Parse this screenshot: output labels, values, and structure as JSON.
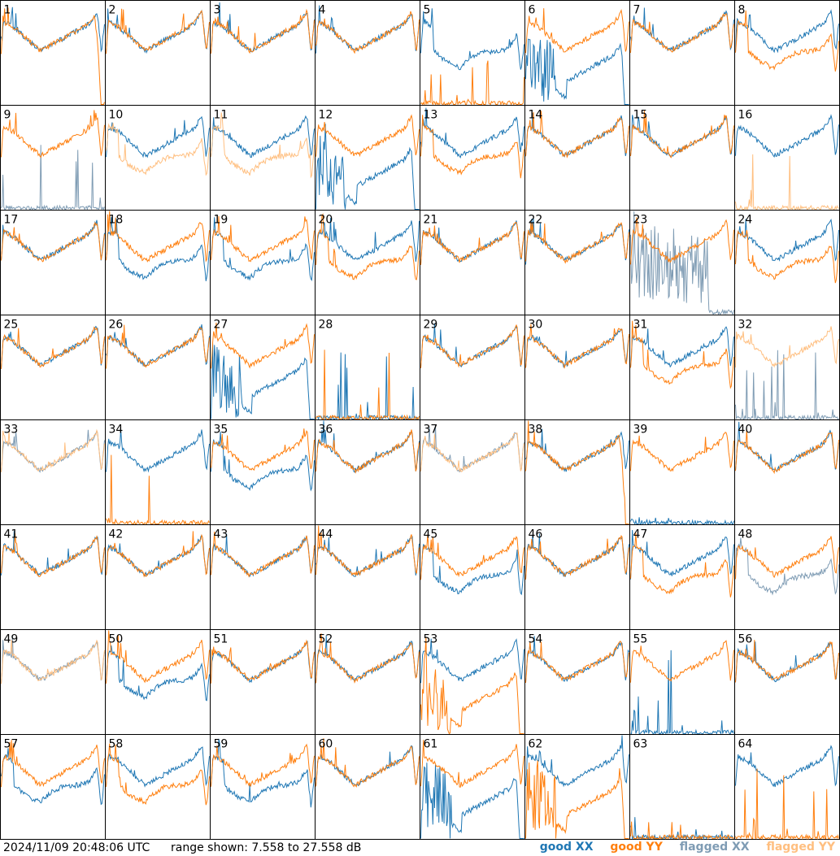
{
  "footer": {
    "timestamp": "2024/11/09 20:48:06 UTC",
    "range_text": "range shown: 7.558 to 27.558 dB"
  },
  "legend": [
    {
      "label": "good XX",
      "color": "#1f77b4"
    },
    {
      "label": "good YY",
      "color": "#ff7f0e"
    },
    {
      "label": "flagged XX",
      "color": "#7f9cb4"
    },
    {
      "label": "flagged YY",
      "color": "#ffbf80"
    }
  ],
  "chart_data": {
    "type": "line",
    "grid": {
      "rows": 8,
      "cols": 8
    },
    "ylim": [
      7.558,
      27.558
    ],
    "yunit": "dB",
    "panels": [
      {
        "id": 1,
        "xx": "good",
        "yy": "good",
        "xx_shape": "normal",
        "yy_shape": "falloff"
      },
      {
        "id": 2,
        "xx": "good",
        "yy": "good",
        "xx_shape": "normal",
        "yy_shape": "normal"
      },
      {
        "id": 3,
        "xx": "good",
        "yy": "good",
        "xx_shape": "normal",
        "yy_shape": "normal"
      },
      {
        "id": 4,
        "xx": "good",
        "yy": "good",
        "xx_shape": "normal",
        "yy_shape": "normal"
      },
      {
        "id": 5,
        "xx": "good",
        "yy": "good",
        "xx_shape": "low",
        "yy_shape": "dead"
      },
      {
        "id": 6,
        "xx": "good",
        "yy": "good",
        "xx_shape": "droop",
        "yy_shape": "normal"
      },
      {
        "id": 7,
        "xx": "good",
        "yy": "good",
        "xx_shape": "normal",
        "yy_shape": "normal"
      },
      {
        "id": 8,
        "xx": "good",
        "yy": "good",
        "xx_shape": "normal",
        "yy_shape": "low"
      },
      {
        "id": 9,
        "xx": "flagged",
        "yy": "good",
        "xx_shape": "dead",
        "yy_shape": "normal"
      },
      {
        "id": 10,
        "xx": "good",
        "yy": "flagged",
        "xx_shape": "normal",
        "yy_shape": "low"
      },
      {
        "id": 11,
        "xx": "good",
        "yy": "flagged",
        "xx_shape": "normal",
        "yy_shape": "low"
      },
      {
        "id": 12,
        "xx": "good",
        "yy": "good",
        "xx_shape": "droop",
        "yy_shape": "normal"
      },
      {
        "id": 13,
        "xx": "good",
        "yy": "good",
        "xx_shape": "normal",
        "yy_shape": "low"
      },
      {
        "id": 14,
        "xx": "good",
        "yy": "good",
        "xx_shape": "normal",
        "yy_shape": "normal"
      },
      {
        "id": 15,
        "xx": "good",
        "yy": "good",
        "xx_shape": "normal",
        "yy_shape": "normal"
      },
      {
        "id": 16,
        "xx": "good",
        "yy": "flagged",
        "xx_shape": "normal",
        "yy_shape": "dead"
      },
      {
        "id": 17,
        "xx": "good",
        "yy": "good",
        "xx_shape": "normal",
        "yy_shape": "normal"
      },
      {
        "id": 18,
        "xx": "good",
        "yy": "good",
        "xx_shape": "low",
        "yy_shape": "normal"
      },
      {
        "id": 19,
        "xx": "good",
        "yy": "good",
        "xx_shape": "low",
        "yy_shape": "normal"
      },
      {
        "id": 20,
        "xx": "good",
        "yy": "good",
        "xx_shape": "normal",
        "yy_shape": "low"
      },
      {
        "id": 21,
        "xx": "good",
        "yy": "good",
        "xx_shape": "normal",
        "yy_shape": "normal"
      },
      {
        "id": 22,
        "xx": "good",
        "yy": "good",
        "xx_shape": "normal",
        "yy_shape": "normal"
      },
      {
        "id": 23,
        "xx": "flagged",
        "yy": "good",
        "xx_shape": "noise",
        "yy_shape": "normal"
      },
      {
        "id": 24,
        "xx": "good",
        "yy": "good",
        "xx_shape": "normal",
        "yy_shape": "low"
      },
      {
        "id": 25,
        "xx": "good",
        "yy": "good",
        "xx_shape": "normal",
        "yy_shape": "normal"
      },
      {
        "id": 26,
        "xx": "good",
        "yy": "good",
        "xx_shape": "normal",
        "yy_shape": "normal"
      },
      {
        "id": 27,
        "xx": "good",
        "yy": "good",
        "xx_shape": "droop",
        "yy_shape": "normal"
      },
      {
        "id": 28,
        "xx": "good",
        "yy": "good",
        "xx_shape": "dead",
        "yy_shape": "dead"
      },
      {
        "id": 29,
        "xx": "good",
        "yy": "good",
        "xx_shape": "normal",
        "yy_shape": "normal"
      },
      {
        "id": 30,
        "xx": "good",
        "yy": "good",
        "xx_shape": "normal",
        "yy_shape": "normal"
      },
      {
        "id": 31,
        "xx": "good",
        "yy": "good",
        "xx_shape": "normal",
        "yy_shape": "low"
      },
      {
        "id": 32,
        "xx": "flagged",
        "yy": "flagged",
        "xx_shape": "dead",
        "yy_shape": "normal"
      },
      {
        "id": 33,
        "xx": "flagged",
        "yy": "flagged",
        "xx_shape": "normal",
        "yy_shape": "normal"
      },
      {
        "id": 34,
        "xx": "good",
        "yy": "good",
        "xx_shape": "normal",
        "yy_shape": "dead"
      },
      {
        "id": 35,
        "xx": "good",
        "yy": "good",
        "xx_shape": "low",
        "yy_shape": "normal"
      },
      {
        "id": 36,
        "xx": "good",
        "yy": "good",
        "xx_shape": "normal",
        "yy_shape": "normal"
      },
      {
        "id": 37,
        "xx": "flagged",
        "yy": "flagged",
        "xx_shape": "normal",
        "yy_shape": "normal"
      },
      {
        "id": 38,
        "xx": "good",
        "yy": "good",
        "xx_shape": "normal",
        "yy_shape": "falloff"
      },
      {
        "id": 39,
        "xx": "good",
        "yy": "good",
        "xx_shape": "dead",
        "yy_shape": "normal"
      },
      {
        "id": 40,
        "xx": "good",
        "yy": "good",
        "xx_shape": "normal",
        "yy_shape": "normal"
      },
      {
        "id": 41,
        "xx": "good",
        "yy": "good",
        "xx_shape": "normal",
        "yy_shape": "normal"
      },
      {
        "id": 42,
        "xx": "good",
        "yy": "good",
        "xx_shape": "normal",
        "yy_shape": "normal"
      },
      {
        "id": 43,
        "xx": "good",
        "yy": "good",
        "xx_shape": "normal",
        "yy_shape": "normal"
      },
      {
        "id": 44,
        "xx": "good",
        "yy": "good",
        "xx_shape": "normal",
        "yy_shape": "normal"
      },
      {
        "id": 45,
        "xx": "good",
        "yy": "good",
        "xx_shape": "low",
        "yy_shape": "normal"
      },
      {
        "id": 46,
        "xx": "good",
        "yy": "good",
        "xx_shape": "normal",
        "yy_shape": "normal"
      },
      {
        "id": 47,
        "xx": "good",
        "yy": "good",
        "xx_shape": "normal",
        "yy_shape": "low"
      },
      {
        "id": 48,
        "xx": "flagged",
        "yy": "good",
        "xx_shape": "low",
        "yy_shape": "normal"
      },
      {
        "id": 49,
        "xx": "flagged",
        "yy": "flagged",
        "xx_shape": "normal",
        "yy_shape": "normal"
      },
      {
        "id": 50,
        "xx": "good",
        "yy": "good",
        "xx_shape": "low",
        "yy_shape": "normal"
      },
      {
        "id": 51,
        "xx": "good",
        "yy": "good",
        "xx_shape": "normal",
        "yy_shape": "normal"
      },
      {
        "id": 52,
        "xx": "good",
        "yy": "good",
        "xx_shape": "normal",
        "yy_shape": "normal"
      },
      {
        "id": 53,
        "xx": "good",
        "yy": "good",
        "xx_shape": "normal",
        "yy_shape": "droop"
      },
      {
        "id": 54,
        "xx": "good",
        "yy": "good",
        "xx_shape": "normal",
        "yy_shape": "normal"
      },
      {
        "id": 55,
        "xx": "good",
        "yy": "good",
        "xx_shape": "dead",
        "yy_shape": "normal"
      },
      {
        "id": 56,
        "xx": "good",
        "yy": "good",
        "xx_shape": "normal",
        "yy_shape": "normal"
      },
      {
        "id": 57,
        "xx": "good",
        "yy": "good",
        "xx_shape": "low",
        "yy_shape": "normal"
      },
      {
        "id": 58,
        "xx": "good",
        "yy": "good",
        "xx_shape": "normal",
        "yy_shape": "low"
      },
      {
        "id": 59,
        "xx": "good",
        "yy": "good",
        "xx_shape": "low",
        "yy_shape": "normal"
      },
      {
        "id": 60,
        "xx": "good",
        "yy": "good",
        "xx_shape": "normal",
        "yy_shape": "normal"
      },
      {
        "id": 61,
        "xx": "good",
        "yy": "good",
        "xx_shape": "droop",
        "yy_shape": "normal"
      },
      {
        "id": 62,
        "xx": "good",
        "yy": "good",
        "xx_shape": "normal",
        "yy_shape": "droop"
      },
      {
        "id": 63,
        "xx": "good",
        "yy": "good",
        "xx_shape": "dead",
        "yy_shape": "dead"
      },
      {
        "id": 64,
        "xx": "good",
        "yy": "good",
        "xx_shape": "normal",
        "yy_shape": "dead"
      }
    ]
  }
}
